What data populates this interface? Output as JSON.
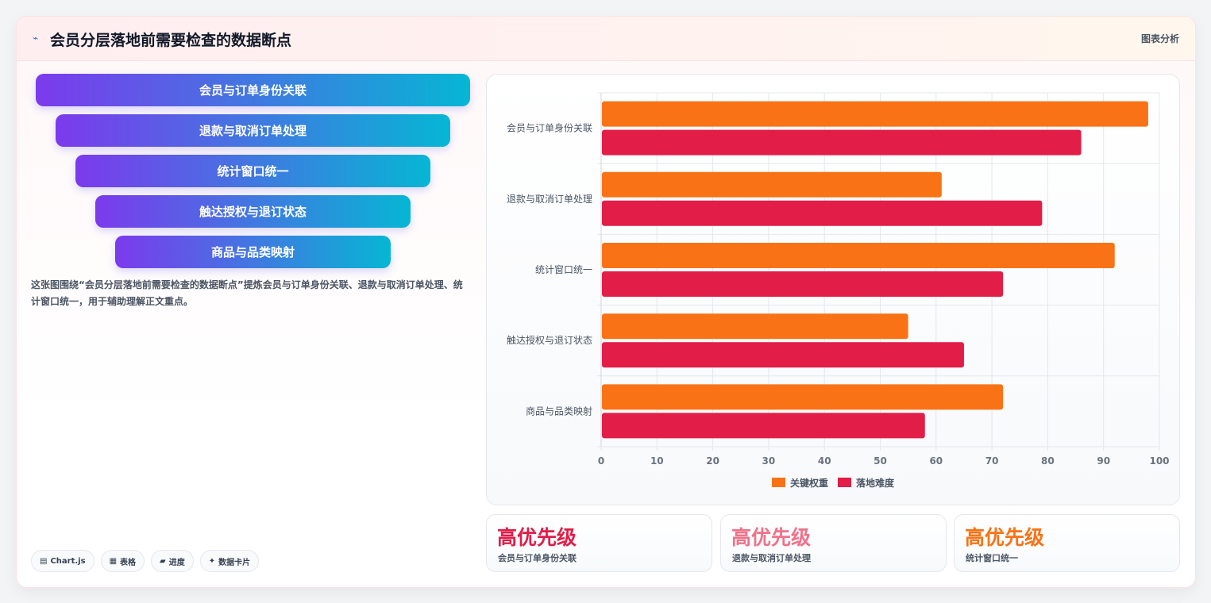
{
  "header": {
    "title": "会员分层落地前需要检查的数据断点",
    "tag": "图表分析"
  },
  "funnel": [
    "会员与订单身份关联",
    "退款与取消订单处理",
    "统计窗口统一",
    "触达授权与退订状态",
    "商品与品类映射"
  ],
  "description": "这张图围绕“会员分层落地前需要检查的数据断点”提炼会员与订单身份关联、退款与取消订单处理、统计窗口统一，用于辅助理解正文重点。",
  "chips": [
    {
      "icon": "▤",
      "label": "Chart.js"
    },
    {
      "icon": "▦",
      "label": "表格"
    },
    {
      "icon": "▰",
      "label": "进度"
    },
    {
      "icon": "✦",
      "label": "数据卡片"
    }
  ],
  "stats": [
    {
      "value": "高优先级",
      "label": "会员与订单身份关联",
      "color": "#e11d48"
    },
    {
      "value": "高优先级",
      "label": "退款与取消订单处理",
      "color": "#f0728a"
    },
    {
      "value": "高优先级",
      "label": "统计窗口统一",
      "color": "#f97316"
    }
  ],
  "chart_data": {
    "type": "bar",
    "orientation": "horizontal",
    "categories": [
      "会员与订单身份关联",
      "退款与取消订单处理",
      "统计窗口统一",
      "触达授权与退订状态",
      "商品与品类映射"
    ],
    "series": [
      {
        "name": "关键权重",
        "values": [
          98,
          61,
          92,
          55,
          72
        ],
        "color": "#f97316"
      },
      {
        "name": "落地难度",
        "values": [
          86,
          79,
          72,
          65,
          58
        ],
        "color": "#e11d48"
      }
    ],
    "xlim": [
      0,
      100
    ],
    "xticks": [
      "0",
      "10",
      "20",
      "30",
      "40",
      "50",
      "60",
      "70",
      "80",
      "90",
      "100"
    ],
    "grid": true,
    "legend": "bottom"
  }
}
